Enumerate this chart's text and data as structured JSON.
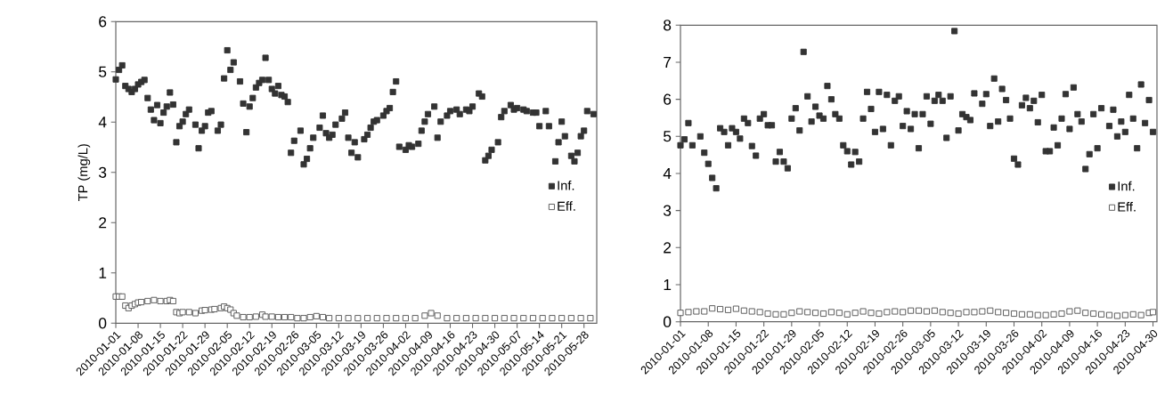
{
  "chart_data": [
    {
      "type": "scatter",
      "ylabel": "TP (mg/L)",
      "xlim": [
        "2010-01-01",
        "2010-06-01"
      ],
      "ylim": [
        0,
        6
      ],
      "yticks": [
        0,
        1,
        2,
        3,
        4,
        5,
        6
      ],
      "xticks": [
        "2010-01-01",
        "2010-01-08",
        "2010-01-15",
        "2010-01-22",
        "2010-01-29",
        "2010-02-05",
        "2010-02-12",
        "2010-02-19",
        "2010-02-26",
        "2010-03-05",
        "2010-03-12",
        "2010-03-19",
        "2010-03-26",
        "2010-04-02",
        "2010-04-09",
        "2010-04-16",
        "2010-04-23",
        "2010-04-30",
        "2010-05-07",
        "2010-05-14",
        "2010-05-21",
        "2010-05-28"
      ],
      "marker": "square",
      "legend": "right",
      "grid": false,
      "series": [
        {
          "name": "Inf.",
          "color": "#333333",
          "x": [
            "2010-01-01",
            "2010-01-02",
            "2010-01-03",
            "2010-01-04",
            "2010-01-05",
            "2010-01-06",
            "2010-01-07",
            "2010-01-08",
            "2010-01-09",
            "2010-01-10",
            "2010-01-11",
            "2010-01-12",
            "2010-01-13",
            "2010-01-14",
            "2010-01-15",
            "2010-01-16",
            "2010-01-17",
            "2010-01-18",
            "2010-01-19",
            "2010-01-20",
            "2010-01-21",
            "2010-01-22",
            "2010-01-23",
            "2010-01-24",
            "2010-01-26",
            "2010-01-27",
            "2010-01-28",
            "2010-01-29",
            "2010-01-30",
            "2010-01-31",
            "2010-02-02",
            "2010-02-03",
            "2010-02-04",
            "2010-02-05",
            "2010-02-06",
            "2010-02-07",
            "2010-02-09",
            "2010-02-10",
            "2010-02-11",
            "2010-02-12",
            "2010-02-13",
            "2010-02-14",
            "2010-02-15",
            "2010-02-16",
            "2010-02-17",
            "2010-02-18",
            "2010-02-19",
            "2010-02-20",
            "2010-02-21",
            "2010-02-22",
            "2010-02-23",
            "2010-02-24",
            "2010-02-25",
            "2010-02-26",
            "2010-02-28",
            "2010-03-01",
            "2010-03-02",
            "2010-03-03",
            "2010-03-04",
            "2010-03-06",
            "2010-03-07",
            "2010-03-08",
            "2010-03-09",
            "2010-03-10",
            "2010-03-11",
            "2010-03-13",
            "2010-03-14",
            "2010-03-15",
            "2010-03-16",
            "2010-03-17",
            "2010-03-18",
            "2010-03-20",
            "2010-03-21",
            "2010-03-22",
            "2010-03-23",
            "2010-03-24",
            "2010-03-26",
            "2010-03-27",
            "2010-03-28",
            "2010-03-29",
            "2010-03-30",
            "2010-03-31",
            "2010-04-02",
            "2010-04-03",
            "2010-04-04",
            "2010-04-06",
            "2010-04-07",
            "2010-04-08",
            "2010-04-09",
            "2010-04-11",
            "2010-04-12",
            "2010-04-13",
            "2010-04-15",
            "2010-04-16",
            "2010-04-18",
            "2010-04-19",
            "2010-04-21",
            "2010-04-22",
            "2010-04-23",
            "2010-04-25",
            "2010-04-26",
            "2010-04-27",
            "2010-04-28",
            "2010-04-29",
            "2010-05-01",
            "2010-05-02",
            "2010-05-03",
            "2010-05-05",
            "2010-05-06",
            "2010-05-07",
            "2010-05-09",
            "2010-05-10",
            "2010-05-12",
            "2010-05-13",
            "2010-05-14",
            "2010-05-16",
            "2010-05-17",
            "2010-05-19",
            "2010-05-20",
            "2010-05-21",
            "2010-05-22",
            "2010-05-24",
            "2010-05-25",
            "2010-05-26",
            "2010-05-27",
            "2010-05-28",
            "2010-05-29",
            "2010-05-31"
          ],
          "values": [
            4.85,
            5.04,
            5.13,
            4.72,
            4.66,
            4.6,
            4.66,
            4.75,
            4.8,
            4.84,
            4.48,
            4.25,
            4.04,
            4.34,
            3.98,
            4.19,
            4.31,
            4.59,
            4.35,
            3.6,
            3.92,
            4.01,
            4.16,
            4.25,
            3.95,
            3.48,
            3.83,
            3.92,
            4.19,
            4.22,
            3.83,
            3.95,
            4.87,
            5.43,
            5.04,
            5.19,
            4.81,
            4.37,
            3.8,
            4.31,
            4.48,
            4.69,
            4.78,
            4.84,
            5.28,
            4.84,
            4.66,
            4.57,
            4.72,
            4.54,
            4.51,
            4.4,
            3.39,
            3.63,
            3.83,
            3.16,
            3.27,
            3.48,
            3.69,
            3.89,
            4.13,
            3.78,
            3.69,
            3.75,
            3.95,
            4.07,
            4.19,
            3.69,
            3.39,
            3.6,
            3.3,
            3.66,
            3.75,
            3.89,
            4.01,
            4.04,
            4.13,
            4.22,
            4.28,
            4.6,
            4.81,
            3.51,
            3.45,
            3.54,
            3.51,
            3.57,
            3.83,
            4.01,
            4.16,
            4.31,
            3.69,
            4.01,
            4.13,
            4.22,
            4.25,
            4.16,
            4.25,
            4.22,
            4.31,
            4.57,
            4.51,
            3.24,
            3.33,
            3.45,
            3.6,
            4.1,
            4.22,
            4.34,
            4.25,
            4.28,
            4.25,
            4.22,
            4.19,
            4.19,
            3.92,
            4.22,
            3.92,
            3.22,
            3.6,
            4.01,
            3.72,
            3.33,
            3.22,
            3.39,
            3.72,
            3.83,
            4.22,
            4.16
          ]
        },
        {
          "name": "Eff.",
          "color": "#555555",
          "x": [
            "2010-01-01",
            "2010-01-02",
            "2010-01-03",
            "2010-01-04",
            "2010-01-05",
            "2010-01-06",
            "2010-01-07",
            "2010-01-08",
            "2010-01-09",
            "2010-01-11",
            "2010-01-13",
            "2010-01-15",
            "2010-01-17",
            "2010-01-18",
            "2010-01-19",
            "2010-01-20",
            "2010-01-21",
            "2010-01-22",
            "2010-01-24",
            "2010-01-26",
            "2010-01-28",
            "2010-01-29",
            "2010-01-31",
            "2010-02-01",
            "2010-02-03",
            "2010-02-04",
            "2010-02-05",
            "2010-02-06",
            "2010-02-07",
            "2010-02-08",
            "2010-02-10",
            "2010-02-12",
            "2010-02-14",
            "2010-02-16",
            "2010-02-17",
            "2010-02-19",
            "2010-02-21",
            "2010-02-23",
            "2010-02-25",
            "2010-02-27",
            "2010-03-01",
            "2010-03-03",
            "2010-03-05",
            "2010-03-07",
            "2010-03-09",
            "2010-03-12",
            "2010-03-15",
            "2010-03-18",
            "2010-03-21",
            "2010-03-24",
            "2010-03-27",
            "2010-03-30",
            "2010-04-02",
            "2010-04-05",
            "2010-04-08",
            "2010-04-10",
            "2010-04-12",
            "2010-04-15",
            "2010-04-18",
            "2010-04-21",
            "2010-04-24",
            "2010-04-27",
            "2010-04-30",
            "2010-05-03",
            "2010-05-06",
            "2010-05-09",
            "2010-05-12",
            "2010-05-15",
            "2010-05-18",
            "2010-05-21",
            "2010-05-24",
            "2010-05-27",
            "2010-05-30"
          ],
          "values": [
            0.53,
            0.53,
            0.53,
            0.35,
            0.3,
            0.35,
            0.38,
            0.41,
            0.42,
            0.44,
            0.46,
            0.44,
            0.44,
            0.46,
            0.44,
            0.22,
            0.2,
            0.22,
            0.22,
            0.2,
            0.25,
            0.26,
            0.27,
            0.28,
            0.3,
            0.33,
            0.3,
            0.27,
            0.2,
            0.15,
            0.12,
            0.12,
            0.13,
            0.17,
            0.13,
            0.13,
            0.12,
            0.12,
            0.12,
            0.1,
            0.1,
            0.12,
            0.14,
            0.12,
            0.1,
            0.1,
            0.1,
            0.1,
            0.1,
            0.1,
            0.1,
            0.1,
            0.1,
            0.1,
            0.15,
            0.2,
            0.15,
            0.1,
            0.1,
            0.1,
            0.1,
            0.1,
            0.1,
            0.1,
            0.1,
            0.1,
            0.1,
            0.1,
            0.1,
            0.1,
            0.1,
            0.1,
            0.1
          ]
        }
      ]
    },
    {
      "type": "scatter",
      "xlim": [
        "2010-01-01",
        "2010-05-01"
      ],
      "ylim": [
        0,
        8
      ],
      "yticks": [
        0,
        1,
        2,
        3,
        4,
        5,
        6,
        7,
        8
      ],
      "xticks": [
        "2010-01-01",
        "2010-01-08",
        "2010-01-15",
        "2010-01-22",
        "2010-01-29",
        "2010-02-05",
        "2010-02-12",
        "2010-02-19",
        "2010-02-26",
        "2010-03-05",
        "2010-03-12",
        "2010-03-19",
        "2010-03-26",
        "2010-04-02",
        "2010-04-09",
        "2010-04-16",
        "2010-04-23",
        "2010-04-30"
      ],
      "marker": "square",
      "legend": "right",
      "grid": false,
      "series": [
        {
          "name": "Inf.",
          "color": "#333333",
          "x": [
            "2010-01-01",
            "2010-01-02",
            "2010-01-03",
            "2010-01-04",
            "2010-01-06",
            "2010-01-07",
            "2010-01-08",
            "2010-01-09",
            "2010-01-10",
            "2010-01-11",
            "2010-01-12",
            "2010-01-13",
            "2010-01-14",
            "2010-01-15",
            "2010-01-16",
            "2010-01-17",
            "2010-01-18",
            "2010-01-19",
            "2010-01-20",
            "2010-01-21",
            "2010-01-22",
            "2010-01-23",
            "2010-01-24",
            "2010-01-25",
            "2010-01-26",
            "2010-01-27",
            "2010-01-28",
            "2010-01-29",
            "2010-01-30",
            "2010-01-31",
            "2010-02-01",
            "2010-02-02",
            "2010-02-03",
            "2010-02-04",
            "2010-02-05",
            "2010-02-06",
            "2010-02-07",
            "2010-02-08",
            "2010-02-09",
            "2010-02-10",
            "2010-02-11",
            "2010-02-12",
            "2010-02-13",
            "2010-02-14",
            "2010-02-15",
            "2010-02-16",
            "2010-02-17",
            "2010-02-18",
            "2010-02-19",
            "2010-02-20",
            "2010-02-21",
            "2010-02-22",
            "2010-02-23",
            "2010-02-24",
            "2010-02-25",
            "2010-02-26",
            "2010-02-27",
            "2010-02-28",
            "2010-03-01",
            "2010-03-02",
            "2010-03-03",
            "2010-03-04",
            "2010-03-05",
            "2010-03-06",
            "2010-03-07",
            "2010-03-08",
            "2010-03-09",
            "2010-03-10",
            "2010-03-11",
            "2010-03-12",
            "2010-03-13",
            "2010-03-14",
            "2010-03-15",
            "2010-03-16",
            "2010-03-18",
            "2010-03-19",
            "2010-03-20",
            "2010-03-21",
            "2010-03-22",
            "2010-03-23",
            "2010-03-24",
            "2010-03-25",
            "2010-03-26",
            "2010-03-27",
            "2010-03-28",
            "2010-03-29",
            "2010-03-30",
            "2010-03-31",
            "2010-04-01",
            "2010-04-02",
            "2010-04-03",
            "2010-04-04",
            "2010-04-05",
            "2010-04-06",
            "2010-04-07",
            "2010-04-08",
            "2010-04-09",
            "2010-04-10",
            "2010-04-11",
            "2010-04-12",
            "2010-04-13",
            "2010-04-14",
            "2010-04-15",
            "2010-04-16",
            "2010-04-17",
            "2010-04-19",
            "2010-04-20",
            "2010-04-21",
            "2010-04-22",
            "2010-04-23",
            "2010-04-24",
            "2010-04-25",
            "2010-04-26",
            "2010-04-27",
            "2010-04-28",
            "2010-04-29",
            "2010-04-30"
          ],
          "values": [
            4.76,
            4.92,
            5.36,
            4.76,
            5.0,
            4.56,
            4.26,
            3.88,
            3.6,
            5.22,
            5.12,
            4.76,
            5.22,
            5.12,
            4.94,
            5.48,
            5.36,
            4.74,
            4.48,
            5.48,
            5.6,
            5.3,
            5.3,
            4.32,
            4.58,
            4.32,
            4.14,
            5.48,
            5.76,
            5.16,
            7.28,
            6.08,
            5.4,
            5.8,
            5.56,
            5.48,
            6.36,
            6.0,
            5.6,
            5.48,
            4.76,
            4.6,
            4.24,
            4.58,
            4.32,
            5.48,
            6.2,
            5.74,
            5.12,
            6.2,
            5.2,
            6.12,
            4.76,
            5.96,
            6.08,
            5.28,
            5.68,
            5.2,
            5.6,
            4.68,
            5.6,
            6.08,
            5.34,
            5.96,
            6.12,
            5.96,
            4.96,
            6.08,
            7.84,
            5.16,
            5.6,
            5.52,
            5.44,
            6.16,
            5.88,
            6.14,
            5.28,
            6.56,
            5.4,
            6.28,
            5.98,
            5.48,
            4.4,
            4.24,
            5.84,
            6.04,
            5.76,
            5.96,
            5.38,
            6.12,
            4.6,
            4.6,
            5.24,
            4.76,
            5.48,
            6.14,
            5.2,
            6.32,
            5.6,
            5.4,
            4.12,
            4.52,
            5.6,
            4.68,
            5.76,
            5.28,
            5.72,
            5.0,
            5.4,
            5.12,
            6.12,
            5.48,
            4.68,
            6.4,
            5.36,
            5.98,
            5.12
          ]
        },
        {
          "name": "Eff.",
          "color": "#555555",
          "x": [
            "2010-01-01",
            "2010-01-03",
            "2010-01-05",
            "2010-01-07",
            "2010-01-09",
            "2010-01-11",
            "2010-01-13",
            "2010-01-15",
            "2010-01-17",
            "2010-01-19",
            "2010-01-21",
            "2010-01-23",
            "2010-01-25",
            "2010-01-27",
            "2010-01-29",
            "2010-01-31",
            "2010-02-02",
            "2010-02-04",
            "2010-02-06",
            "2010-02-08",
            "2010-02-10",
            "2010-02-12",
            "2010-02-14",
            "2010-02-16",
            "2010-02-18",
            "2010-02-20",
            "2010-02-22",
            "2010-02-24",
            "2010-02-26",
            "2010-02-28",
            "2010-03-02",
            "2010-03-04",
            "2010-03-06",
            "2010-03-08",
            "2010-03-10",
            "2010-03-12",
            "2010-03-14",
            "2010-03-16",
            "2010-03-18",
            "2010-03-20",
            "2010-03-22",
            "2010-03-24",
            "2010-03-26",
            "2010-03-28",
            "2010-03-30",
            "2010-04-01",
            "2010-04-03",
            "2010-04-05",
            "2010-04-07",
            "2010-04-09",
            "2010-04-11",
            "2010-04-13",
            "2010-04-15",
            "2010-04-17",
            "2010-04-19",
            "2010-04-21",
            "2010-04-23",
            "2010-04-25",
            "2010-04-27",
            "2010-04-29",
            "2010-04-30"
          ],
          "values": [
            0.24,
            0.26,
            0.28,
            0.28,
            0.36,
            0.34,
            0.32,
            0.35,
            0.3,
            0.28,
            0.26,
            0.22,
            0.2,
            0.2,
            0.24,
            0.28,
            0.26,
            0.24,
            0.22,
            0.26,
            0.24,
            0.2,
            0.24,
            0.28,
            0.24,
            0.22,
            0.26,
            0.28,
            0.26,
            0.3,
            0.3,
            0.28,
            0.3,
            0.26,
            0.24,
            0.22,
            0.26,
            0.26,
            0.28,
            0.3,
            0.26,
            0.24,
            0.22,
            0.2,
            0.2,
            0.18,
            0.18,
            0.2,
            0.22,
            0.28,
            0.3,
            0.24,
            0.22,
            0.2,
            0.18,
            0.16,
            0.18,
            0.2,
            0.18,
            0.24,
            0.26
          ]
        }
      ]
    }
  ]
}
